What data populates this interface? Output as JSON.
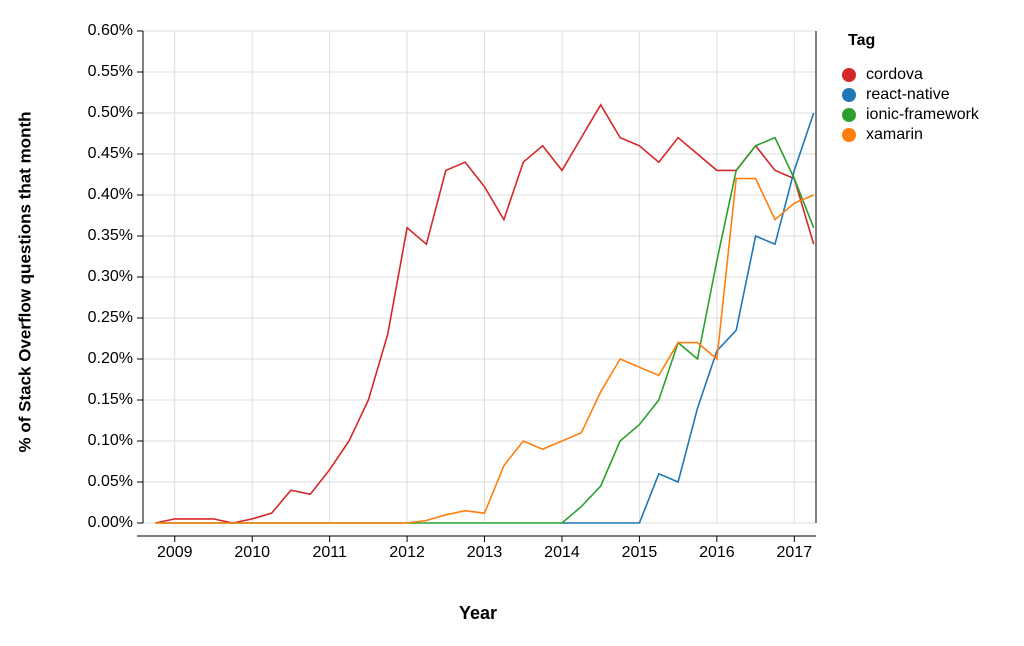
{
  "chart_data": {
    "type": "line",
    "x_label": "Year",
    "y_label": "% of Stack Overflow questions that month",
    "legend_title": "Tag",
    "legend_position": "right",
    "grid": true,
    "x": [
      2008.75,
      2009,
      2009.25,
      2009.5,
      2009.75,
      2010,
      2010.25,
      2010.5,
      2010.75,
      2011,
      2011.25,
      2011.5,
      2011.75,
      2012,
      2012.25,
      2012.5,
      2012.75,
      2013,
      2013.25,
      2013.5,
      2013.75,
      2014,
      2014.25,
      2014.5,
      2014.75,
      2015,
      2015.25,
      2015.5,
      2015.75,
      2016,
      2016.25,
      2016.5,
      2016.75,
      2017,
      2017.25
    ],
    "xlim": [
      2008.59,
      2017.28
    ],
    "xticks": [
      2009,
      2010,
      2011,
      2012,
      2013,
      2014,
      2015,
      2016,
      2017
    ],
    "ylim": [
      0,
      0.6
    ],
    "yticks": [
      {
        "value": 0,
        "label": "0.00%"
      },
      {
        "value": 0.05,
        "label": "0.05%"
      },
      {
        "value": 0.1,
        "label": "0.10%"
      },
      {
        "value": 0.15,
        "label": "0.15%"
      },
      {
        "value": 0.2,
        "label": "0.20%"
      },
      {
        "value": 0.25,
        "label": "0.25%"
      },
      {
        "value": 0.3,
        "label": "0.30%"
      },
      {
        "value": 0.35,
        "label": "0.35%"
      },
      {
        "value": 0.4,
        "label": "0.40%"
      },
      {
        "value": 0.45,
        "label": "0.45%"
      },
      {
        "value": 0.5,
        "label": "0.50%"
      },
      {
        "value": 0.55,
        "label": "0.55%"
      },
      {
        "value": 0.6,
        "label": "0.60%"
      }
    ],
    "series": [
      {
        "name": "cordova",
        "color": "#d62728",
        "values": [
          0,
          0.005,
          0.005,
          0.005,
          0,
          0.005,
          0.012,
          0.04,
          0.035,
          0.065,
          0.1,
          0.15,
          0.23,
          0.36,
          0.34,
          0.43,
          0.44,
          0.41,
          0.37,
          0.44,
          0.46,
          0.43,
          0.47,
          0.51,
          0.47,
          0.46,
          0.44,
          0.47,
          0.45,
          0.43,
          0.43,
          0.46,
          0.43,
          0.42,
          0.34
        ]
      },
      {
        "name": "react-native",
        "color": "#1f77b4",
        "values": [
          null,
          null,
          null,
          null,
          null,
          null,
          null,
          null,
          null,
          null,
          null,
          null,
          null,
          null,
          null,
          null,
          null,
          null,
          null,
          null,
          null,
          0,
          0,
          0,
          0,
          0,
          0.06,
          0.05,
          0.14,
          0.21,
          0.235,
          0.35,
          0.34,
          0.43,
          0.5
        ]
      },
      {
        "name": "ionic-framework",
        "color": "#2ca02c",
        "values": [
          0,
          0,
          0,
          0,
          0,
          0,
          0,
          0,
          0,
          0,
          0,
          0,
          0,
          0,
          0,
          0,
          0,
          0,
          0,
          0,
          0,
          0,
          0.02,
          0.045,
          0.1,
          0.12,
          0.15,
          0.22,
          0.2,
          0.32,
          0.43,
          0.46,
          0.47,
          0.42,
          0.36
        ]
      },
      {
        "name": "xamarin",
        "color": "#ff7f0e",
        "values": [
          0,
          0,
          0,
          0,
          0,
          0,
          0,
          0,
          0,
          0,
          0,
          0,
          0,
          0,
          0.003,
          0.01,
          0.015,
          0.012,
          0.07,
          0.1,
          0.09,
          0.1,
          0.11,
          0.16,
          0.2,
          0.19,
          0.18,
          0.22,
          0.22,
          0.2,
          0.42,
          0.42,
          0.37,
          0.39,
          0.4
        ]
      }
    ]
  }
}
